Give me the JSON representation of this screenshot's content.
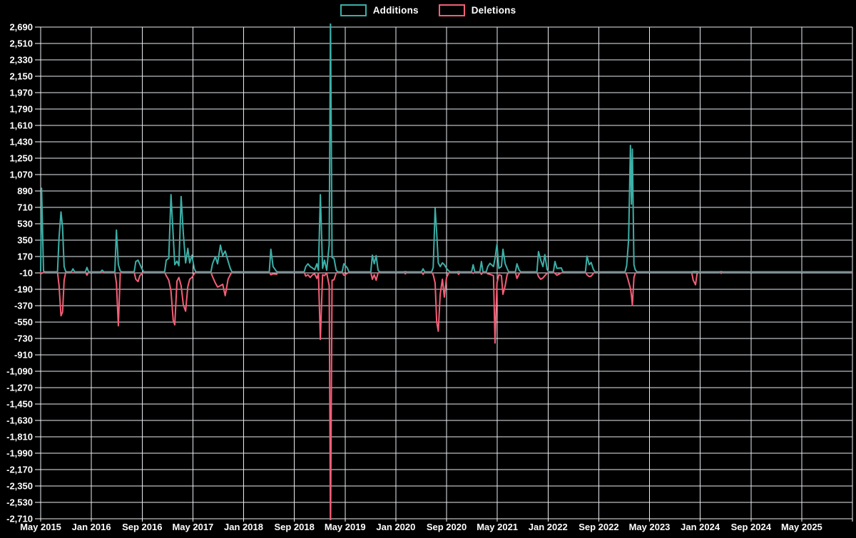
{
  "legend": {
    "items": [
      {
        "label": "Additions",
        "color": "#3cafa7"
      },
      {
        "label": "Deletions",
        "color": "#f25f77"
      }
    ]
  },
  "chart_data": {
    "type": "line",
    "title": "",
    "background": "#000000",
    "grid": true,
    "grid_color": "#e9ebef",
    "legend_position": "top-center",
    "x_axis": {
      "tick_labels": [
        "May 2015",
        "Jan 2016",
        "Sep 2016",
        "May 2017",
        "Jan 2018",
        "Sep 2018",
        "May 2019",
        "Jan 2020",
        "Sep 2020",
        "May 2021",
        "Jan 2022",
        "Sep 2022",
        "May 2023",
        "Jan 2024",
        "Sep 2024",
        "May 2025"
      ],
      "months_per_tick": 8,
      "total_months": 128
    },
    "y_axis": {
      "min": -2710,
      "max": 2690,
      "step": 180,
      "tick_labels": [
        "2,690",
        "2,510",
        "2,330",
        "2,150",
        "1,970",
        "1,790",
        "1,610",
        "1,430",
        "1,250",
        "1,070",
        "890",
        "710",
        "530",
        "350",
        "170",
        "-10",
        "-190",
        "-370",
        "-550",
        "-730",
        "-910",
        "-1,090",
        "-1,270",
        "-1,450",
        "-1,630",
        "-1,810",
        "-1,990",
        "-2,170",
        "-2,350",
        "-2,530",
        "-2,710"
      ]
    },
    "series": [
      {
        "name": "Additions",
        "color": "#3cafa7",
        "field": 1
      },
      {
        "name": "Deletions",
        "color": "#f25f77",
        "field": 2
      }
    ],
    "points_format": [
      "months_since_may_2015",
      "additions",
      "deletions"
    ],
    "points": [
      [
        0.0,
        10,
        -5
      ],
      [
        0.15,
        920,
        -15
      ],
      [
        0.45,
        10,
        -5
      ],
      [
        2.9,
        380,
        -150
      ],
      [
        3.2,
        660,
        -480
      ],
      [
        3.45,
        490,
        -440
      ],
      [
        3.7,
        60,
        -90
      ],
      [
        3.95,
        5,
        -5
      ],
      [
        5.1,
        35,
        -10
      ],
      [
        7.3,
        50,
        -35
      ],
      [
        9.7,
        20,
        -5
      ],
      [
        11.95,
        460,
        -120
      ],
      [
        12.25,
        80,
        -590
      ],
      [
        12.55,
        10,
        -10
      ],
      [
        15.0,
        115,
        -80
      ],
      [
        15.35,
        130,
        -105
      ],
      [
        15.65,
        85,
        -40
      ],
      [
        16.0,
        30,
        -15
      ],
      [
        19.8,
        130,
        -40
      ],
      [
        20.2,
        150,
        -90
      ],
      [
        20.55,
        850,
        -210
      ],
      [
        20.9,
        400,
        -530
      ],
      [
        21.15,
        80,
        -580
      ],
      [
        21.5,
        120,
        -100
      ],
      [
        21.8,
        70,
        -60
      ],
      [
        22.15,
        830,
        -150
      ],
      [
        22.5,
        420,
        -360
      ],
      [
        22.85,
        100,
        -430
      ],
      [
        23.2,
        260,
        -160
      ],
      [
        23.5,
        100,
        -80
      ],
      [
        23.85,
        185,
        -60
      ],
      [
        24.2,
        40,
        -20
      ],
      [
        27.1,
        90,
        -50
      ],
      [
        27.55,
        170,
        -120
      ],
      [
        27.9,
        90,
        -165
      ],
      [
        28.35,
        295,
        -150
      ],
      [
        28.7,
        180,
        -135
      ],
      [
        29.1,
        230,
        -260
      ],
      [
        29.55,
        120,
        -80
      ],
      [
        29.9,
        40,
        -30
      ],
      [
        36.3,
        250,
        -30
      ],
      [
        36.65,
        60,
        -20
      ],
      [
        37.2,
        5,
        -25
      ],
      [
        41.8,
        60,
        -45
      ],
      [
        42.15,
        90,
        -30
      ],
      [
        42.5,
        60,
        -60
      ],
      [
        42.85,
        45,
        -30
      ],
      [
        43.2,
        25,
        -20
      ],
      [
        43.55,
        90,
        -70
      ],
      [
        43.8,
        20,
        -15
      ],
      [
        44.1,
        850,
        -740
      ],
      [
        44.45,
        40,
        -30
      ],
      [
        44.75,
        130,
        -40
      ],
      [
        45.1,
        20,
        -10
      ],
      [
        45.5,
        300,
        -150
      ],
      [
        45.7,
        2800,
        -2900
      ],
      [
        45.95,
        160,
        -90
      ],
      [
        46.25,
        150,
        -85
      ],
      [
        46.6,
        20,
        -10
      ],
      [
        47.8,
        90,
        -35
      ],
      [
        48.35,
        45,
        -15
      ],
      [
        52.3,
        185,
        -80
      ],
      [
        52.6,
        90,
        -30
      ],
      [
        52.9,
        180,
        -90
      ],
      [
        53.2,
        20,
        -10
      ],
      [
        57.5,
        5,
        -20
      ],
      [
        60.3,
        35,
        -25
      ],
      [
        61.9,
        50,
        -30
      ],
      [
        62.2,
        700,
        -120
      ],
      [
        62.45,
        430,
        -550
      ],
      [
        62.7,
        100,
        -650
      ],
      [
        63.0,
        60,
        -245
      ],
      [
        63.35,
        100,
        -80
      ],
      [
        63.65,
        80,
        -275
      ],
      [
        64.0,
        40,
        -60
      ],
      [
        64.3,
        15,
        -15
      ],
      [
        65.9,
        5,
        -25
      ],
      [
        68.2,
        80,
        -15
      ],
      [
        69.5,
        115,
        -25
      ],
      [
        70.5,
        60,
        -20
      ],
      [
        70.85,
        95,
        -25
      ],
      [
        71.4,
        60,
        -40
      ],
      [
        71.65,
        150,
        -780
      ],
      [
        71.95,
        305,
        -120
      ],
      [
        72.25,
        40,
        -30
      ],
      [
        72.65,
        60,
        -40
      ],
      [
        72.9,
        250,
        -245
      ],
      [
        73.25,
        90,
        -150
      ],
      [
        73.55,
        40,
        -30
      ],
      [
        75.1,
        90,
        -70
      ],
      [
        75.45,
        20,
        -20
      ],
      [
        78.5,
        225,
        -50
      ],
      [
        78.85,
        130,
        -80
      ],
      [
        79.2,
        60,
        -65
      ],
      [
        79.5,
        190,
        -40
      ],
      [
        79.85,
        30,
        -15
      ],
      [
        81.1,
        115,
        -15
      ],
      [
        81.4,
        40,
        -35
      ],
      [
        82.1,
        45,
        -10
      ],
      [
        86.15,
        175,
        -30
      ],
      [
        86.5,
        80,
        -50
      ],
      [
        86.8,
        105,
        -45
      ],
      [
        87.15,
        30,
        -15
      ],
      [
        92.4,
        70,
        -30
      ],
      [
        92.7,
        350,
        -105
      ],
      [
        93.0,
        1390,
        -180
      ],
      [
        93.15,
        745,
        -260
      ],
      [
        93.3,
        1350,
        -365
      ],
      [
        93.55,
        80,
        -60
      ],
      [
        93.75,
        25,
        -15
      ],
      [
        102.9,
        5,
        -90
      ],
      [
        103.25,
        5,
        -140
      ],
      [
        103.5,
        5,
        -20
      ],
      [
        107.3,
        5,
        -15
      ],
      [
        128.0,
        3,
        -3
      ]
    ]
  }
}
